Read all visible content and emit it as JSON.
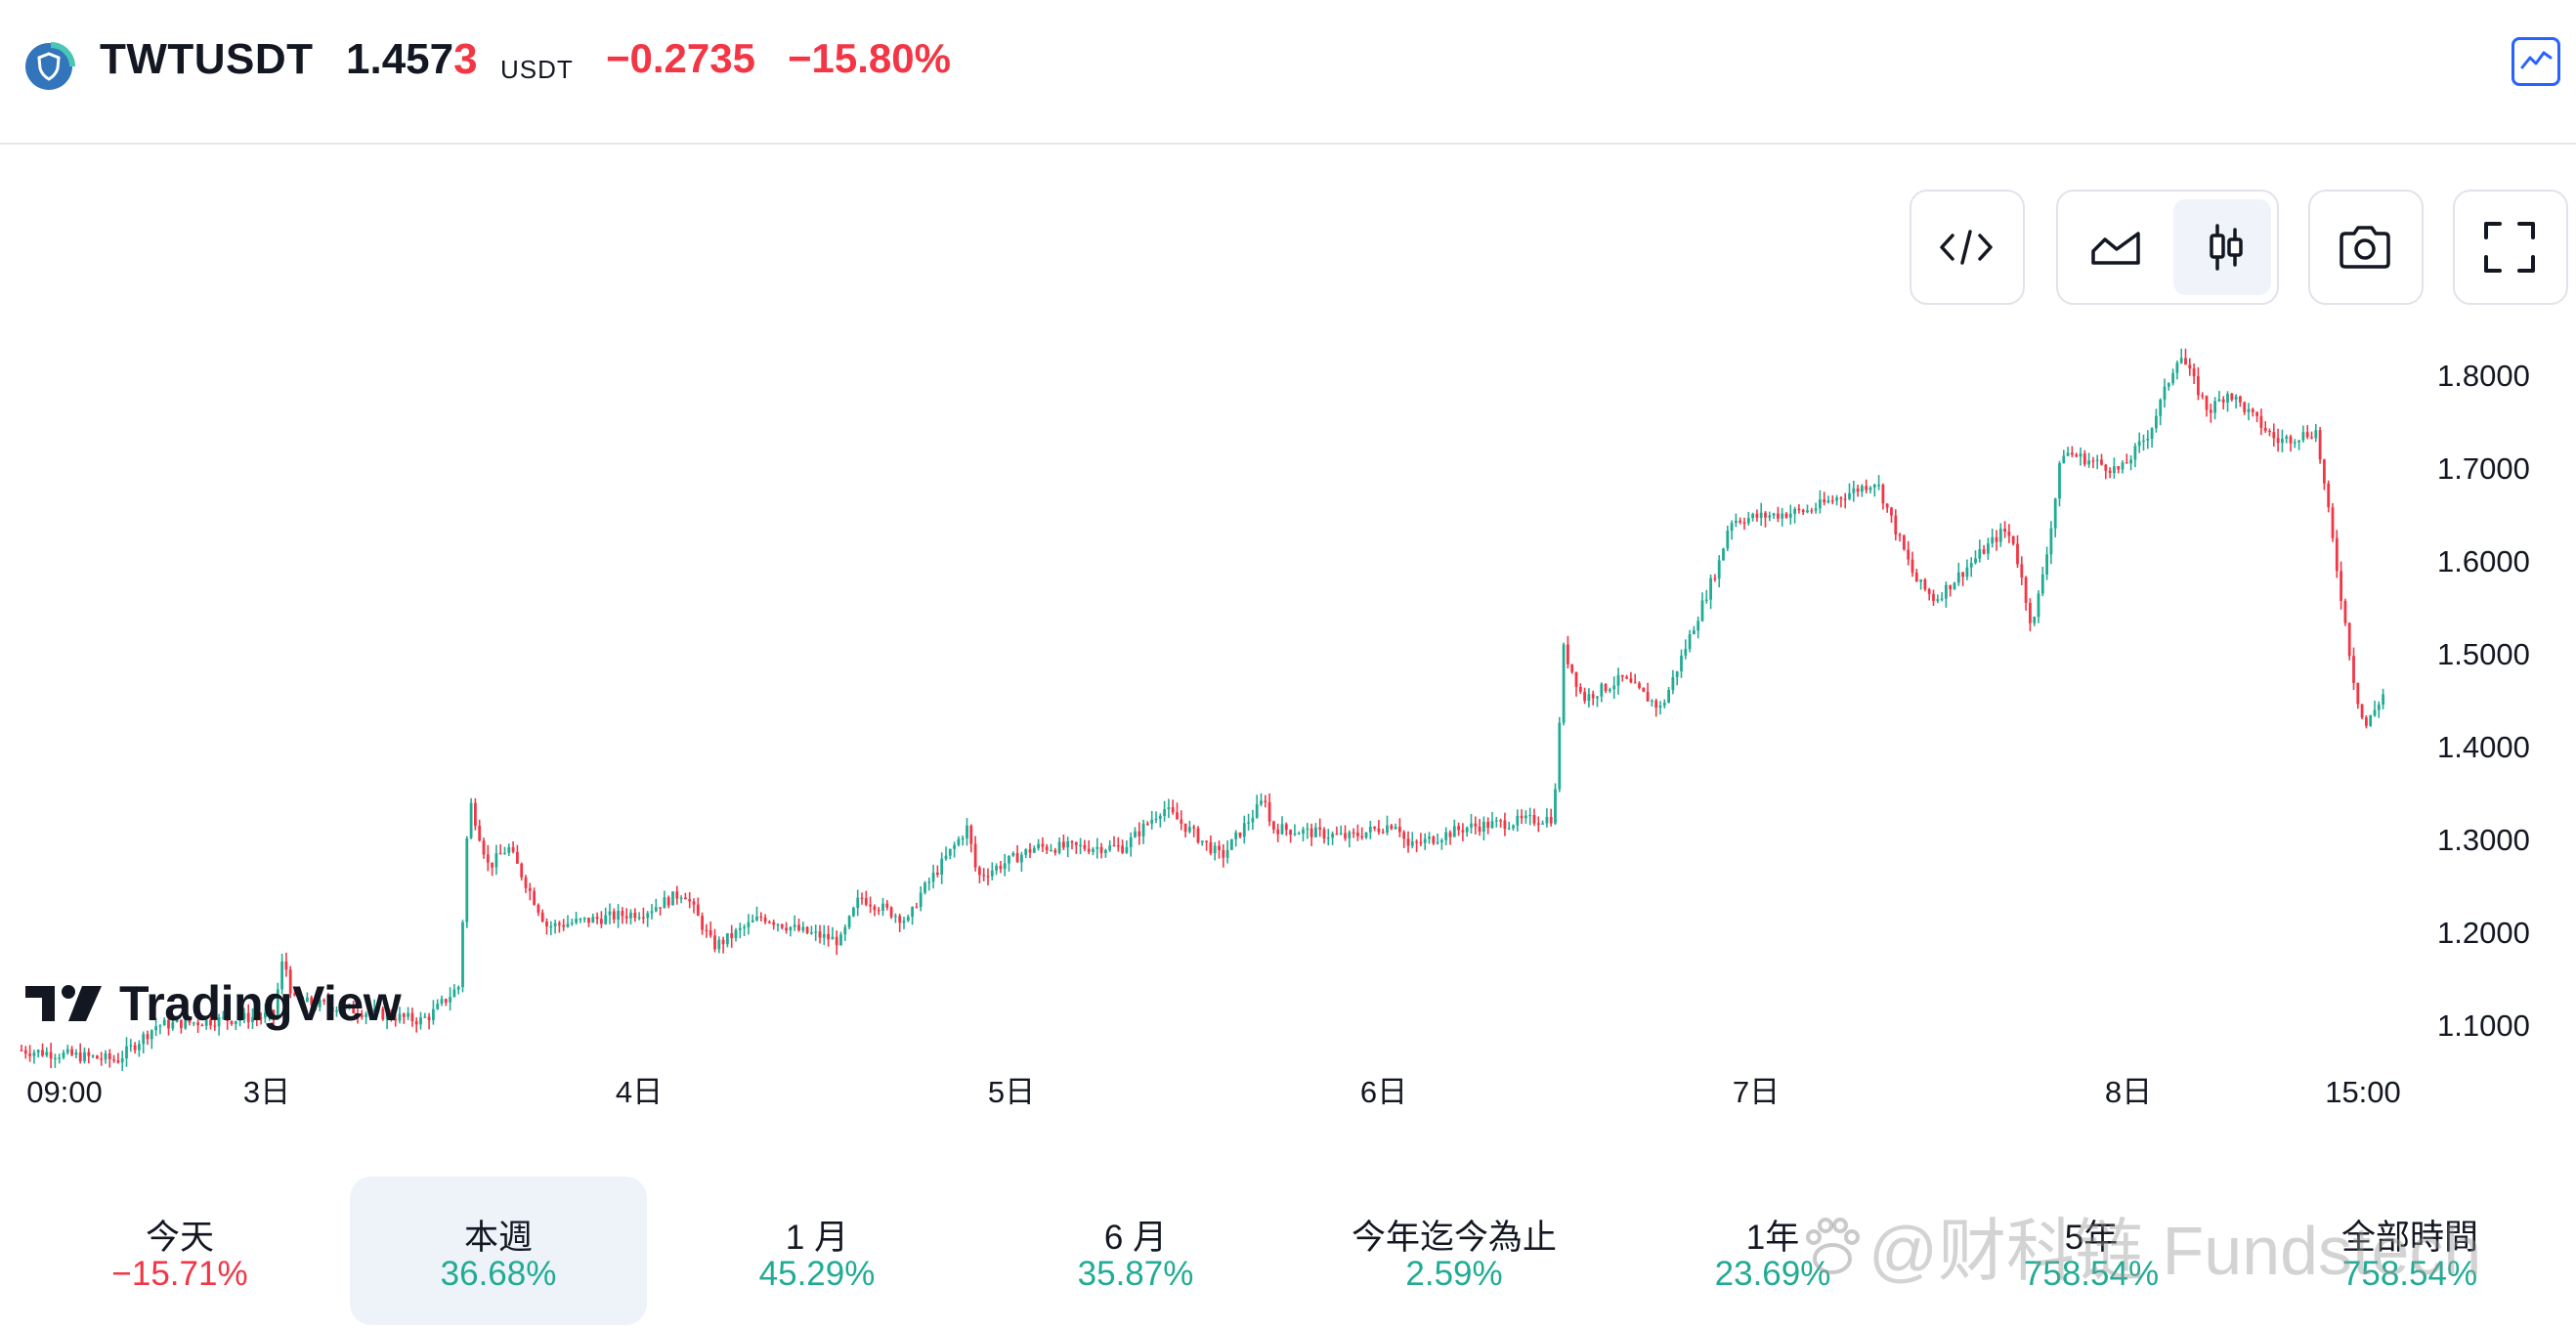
{
  "header": {
    "symbol": "TWTUSDT",
    "price_main": "1.457",
    "price_last_digit": "3",
    "currency": "USDT",
    "change": "−0.2735",
    "change_percent": "−15.80%",
    "icons": [
      "trust-wallet-shield-icon",
      "chart-widget-icon"
    ]
  },
  "toolbar": {
    "buttons": [
      "embed-code-icon",
      "area-chart-icon",
      "candlestick-icon",
      "camera-icon",
      "fullscreen-icon"
    ],
    "active": "candlestick-icon"
  },
  "branding": {
    "logo_text": "TradingView"
  },
  "colors": {
    "up": "#22ab94",
    "down": "#f23645",
    "text": "#131722",
    "active_bg": "#eef2f9",
    "accent": "#2962ff"
  },
  "chart_data": {
    "type": "candlestick",
    "title": "",
    "xlabel": "",
    "ylabel": "",
    "y_axis_position": "right",
    "ylim": [
      1.07,
      1.83
    ],
    "y_ticks": [
      "1.8000",
      "1.7000",
      "1.6000",
      "1.5000",
      "1.4000",
      "1.3000",
      "1.2000",
      "1.1000"
    ],
    "x_ticks": [
      "09:00",
      "3日",
      "4日",
      "5日",
      "6日",
      "7日",
      "8日",
      "15:00"
    ],
    "grid": false,
    "price_path": [
      [
        "09:00",
        1.095
      ],
      [
        "2日 22:00",
        1.085
      ],
      [
        "3日",
        1.12
      ],
      [
        "3日 02:00",
        1.13
      ],
      [
        "3日 03:00",
        1.19
      ],
      [
        "3日 04:00",
        1.145
      ],
      [
        "3日 12:00",
        1.125
      ],
      [
        "3日 16:00",
        1.13
      ],
      [
        "3日 19:00",
        1.16
      ],
      [
        "3日 20:00",
        1.35
      ],
      [
        "3日 21:00",
        1.28
      ],
      [
        "3日 23:00",
        1.3
      ],
      [
        "4日 01:00",
        1.22
      ],
      [
        "4日 05:00",
        1.235
      ],
      [
        "4日 09:00",
        1.255
      ],
      [
        "4日 14:00",
        1.2
      ],
      [
        "4日",
        1.205
      ],
      [
        "4日 06:00",
        1.23
      ],
      [
        "4日 10:00",
        1.215
      ],
      [
        "4日 14:00",
        1.205
      ],
      [
        "4日 18:00",
        1.25
      ],
      [
        "4日 22:00",
        1.225
      ],
      [
        "5日 00:00",
        1.25
      ],
      [
        "5日 02:00",
        1.32
      ],
      [
        "5日 04:00",
        1.27
      ],
      [
        "5日 08:00",
        1.3
      ],
      [
        "5日 14:00",
        1.3
      ],
      [
        "5日 18:00",
        1.34
      ],
      [
        "5日 21:00",
        1.29
      ],
      [
        "6日 22:00",
        1.35
      ],
      [
        "5日 23:00",
        1.32
      ],
      [
        "6日 03:00",
        1.31
      ],
      [
        "6日 06:00",
        1.325
      ],
      [
        "6日 09:00",
        1.3
      ],
      [
        "6日 14:00",
        1.32
      ],
      [
        "6日 20:00",
        1.33
      ],
      [
        "6日 21:00",
        1.5
      ],
      [
        "6日 23:00",
        1.45
      ],
      [
        "7日 01:00",
        1.47
      ],
      [
        "7日 05:00",
        1.44
      ],
      [
        "7日 06:00",
        1.59
      ],
      [
        "7日 08:00",
        1.63
      ],
      [
        "7日 12:00",
        1.64
      ],
      [
        "7日 15:00",
        1.67
      ],
      [
        "7日 18:00",
        1.57
      ],
      [
        "7日 20:00",
        1.55
      ],
      [
        "7日 23:00",
        1.62
      ],
      [
        "8日 02:00",
        1.61
      ],
      [
        "8日 04:00",
        1.52
      ],
      [
        "8日 05:00",
        1.63
      ],
      [
        "8日 07:00",
        1.7
      ],
      [
        "8日 09:00",
        1.68
      ],
      [
        "8日 13:00",
        1.72
      ],
      [
        "8日 15:00",
        1.8
      ],
      [
        "8日 18:00",
        1.74
      ],
      [
        "8日 21:00",
        1.76
      ],
      [
        "9日 00:00",
        1.71
      ],
      [
        "9日 01:00",
        1.72
      ],
      [
        "9日 02:00",
        1.46
      ],
      [
        "9日 04:00",
        1.42
      ],
      [
        "15:00",
        1.457
      ]
    ]
  },
  "periods": [
    {
      "label": "今天",
      "value": "−15.71%",
      "trend": "down",
      "active": false
    },
    {
      "label": "本週",
      "value": "36.68%",
      "trend": "up",
      "active": true
    },
    {
      "label": "1 月",
      "value": "45.29%",
      "trend": "up",
      "active": false
    },
    {
      "label": "6 月",
      "value": "35.87%",
      "trend": "up",
      "active": false
    },
    {
      "label": "今年迄今為止",
      "value": "2.59%",
      "trend": "up",
      "active": false
    },
    {
      "label": "1年",
      "value": "23.69%",
      "trend": "up",
      "active": false
    },
    {
      "label": "5年",
      "value": "758.54%",
      "trend": "up",
      "active": false
    },
    {
      "label": "全部時間",
      "value": "758.54%",
      "trend": "up",
      "active": false
    }
  ],
  "watermark": {
    "text": "@财科链 Fundstech",
    "icon": "paw-du-icon"
  }
}
